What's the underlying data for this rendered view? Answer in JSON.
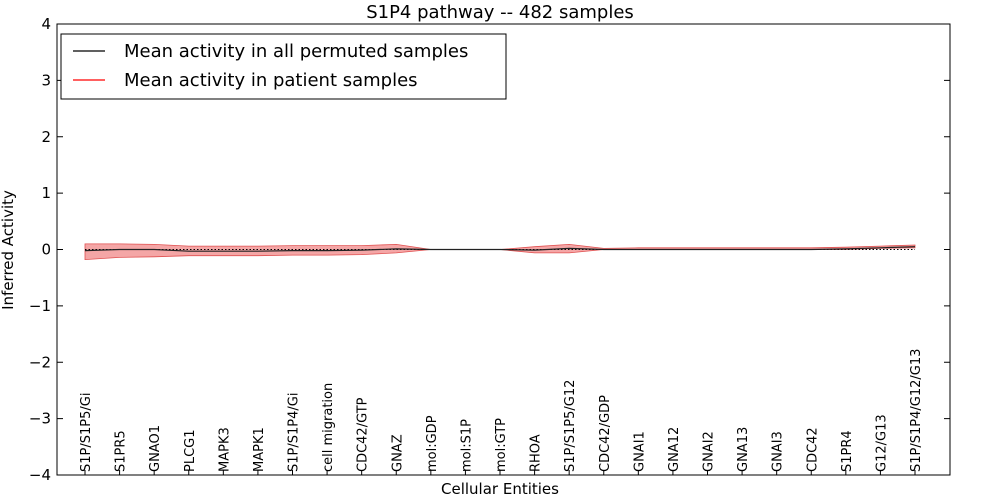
{
  "chart_data": {
    "type": "line",
    "title": "S1P4 pathway -- 482 samples",
    "xlabel": "Cellular Entities",
    "ylabel": "Inferred Activity",
    "ylim": [
      -4,
      4
    ],
    "yticks": [
      -4,
      -3,
      -2,
      -1,
      0,
      1,
      2,
      3,
      4
    ],
    "ytick_labels": [
      "−4",
      "−3",
      "−2",
      "−1",
      "0",
      "1",
      "2",
      "3",
      "4"
    ],
    "categories": [
      "S1P/S1P5/Gi",
      "S1PR5",
      "GNAO1",
      "PLCG1",
      "MAPK3",
      "MAPK1",
      "S1P/S1P4/Gi",
      "cell migration",
      "CDC42/GTP",
      "GNAZ",
      "mol:GDP",
      "mol:S1P",
      "mol:GTP",
      "RHOA",
      "S1P/S1P5/G12",
      "CDC42/GDP",
      "GNAI1",
      "GNA12",
      "GNAI2",
      "GNA13",
      "GNAI3",
      "CDC42",
      "S1PR4",
      "G12/G13",
      "S1P/S1P4/G12/G13"
    ],
    "series": [
      {
        "name": "Mean activity in all permuted samples",
        "color": "#000000",
        "style": "dotted",
        "values": [
          0,
          0,
          0,
          0,
          0,
          0,
          0,
          0,
          0,
          0,
          0,
          0,
          0,
          0,
          0,
          0,
          0,
          0,
          0,
          0,
          0,
          0,
          0,
          0,
          0
        ]
      },
      {
        "name": "Mean activity in patient samples",
        "color": "#ff0000",
        "values": [
          -0.02,
          0.0,
          0.0,
          -0.03,
          -0.03,
          -0.03,
          -0.02,
          -0.02,
          -0.01,
          0.01,
          0.0,
          0.0,
          0.0,
          -0.01,
          0.02,
          0.0,
          0.0,
          0.0,
          0.0,
          0.0,
          0.0,
          0.0,
          0.01,
          0.03,
          0.05
        ],
        "band_lower": [
          -0.18,
          -0.14,
          -0.13,
          -0.11,
          -0.11,
          -0.11,
          -0.1,
          -0.1,
          -0.09,
          -0.06,
          0.0,
          0.0,
          0.0,
          -0.06,
          -0.06,
          0.0,
          0.0,
          0.0,
          0.0,
          0.0,
          0.0,
          0.0,
          0.0,
          0.02,
          0.03
        ],
        "band_upper": [
          0.1,
          0.1,
          0.09,
          0.06,
          0.06,
          0.06,
          0.07,
          0.07,
          0.07,
          0.09,
          0.0,
          0.0,
          0.0,
          0.05,
          0.09,
          0.02,
          0.03,
          0.03,
          0.03,
          0.03,
          0.03,
          0.03,
          0.04,
          0.06,
          0.08
        ],
        "band_color": "#f08080"
      }
    ],
    "legend": {
      "position": "top-left",
      "entries": [
        "Mean activity in all permuted samples",
        "Mean activity in patient samples"
      ]
    },
    "grid": false
  }
}
